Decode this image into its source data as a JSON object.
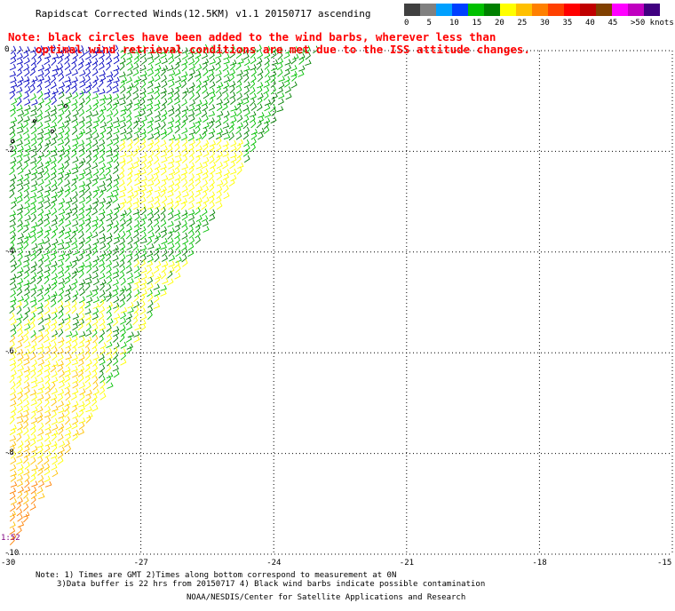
{
  "title": "Rapidscat Corrected Winds(12.5KM) v1.1 20150717 ascending",
  "note_line1": "Note: black circles have been added to the wind barbs, wherever less than",
  "note_line2": "optimal wind retrieval conditions are met due to the ISS attitude changes.",
  "legend": {
    "colors": [
      "#404040",
      "#808080",
      "#00a0ff",
      "#0040ff",
      "#00c000",
      "#008000",
      "#ffff00",
      "#ffc000",
      "#ff8000",
      "#ff4000",
      "#ff0000",
      "#c00000",
      "#804000",
      "#ff00ff",
      "#c000c0",
      "#400080"
    ],
    "labels": [
      "0",
      "5",
      "10",
      "15",
      "20",
      "25",
      "30",
      "35",
      "40",
      "45",
      ">50 knots"
    ]
  },
  "axes": {
    "y_labels": [
      "0",
      "-2",
      "-4",
      "-6",
      "-8",
      "-10"
    ],
    "x_labels": [
      "-30",
      "-27",
      "-24",
      "-21",
      "-18",
      "-15"
    ],
    "lon_range": [
      -30,
      -15
    ],
    "lat_range": [
      -10,
      0
    ]
  },
  "time_label": "1:52",
  "footer": {
    "line1": "Note: 1) Times are GMT 2)Times along bottom correspond to measurement at 0N",
    "line2": "3)Data buffer is 22 hrs from 20150717 4) Black wind barbs indicate possible contamination",
    "line3": "NOAA/NESDIS/Center for Satellite Applications and Research"
  },
  "swath": {
    "edge_points_lonlat": [
      [
        -23.0,
        0
      ],
      [
        -30,
        -10
      ]
    ],
    "dominant_wind_colors": [
      "#0000c0",
      "#00c000",
      "#008000",
      "#ffff00",
      "#ffc000",
      "#ff8000"
    ]
  }
}
